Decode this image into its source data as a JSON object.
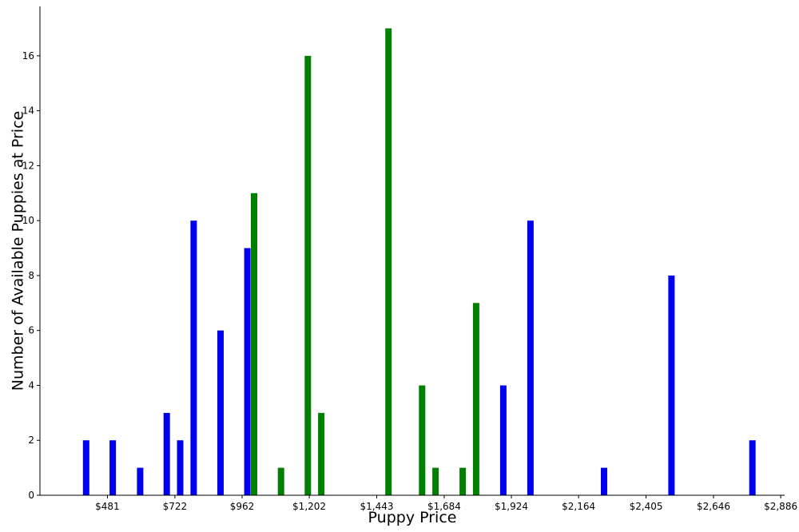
{
  "chart_data": {
    "type": "bar",
    "title": "",
    "xlabel": "Puppy Price",
    "ylabel": "Number of Available Puppies at Price",
    "xlim": [
      240,
      2900
    ],
    "ylim": [
      0,
      17.8
    ],
    "x_ticks": [
      {
        "value": 481,
        "label": "$481"
      },
      {
        "value": 722,
        "label": "$722"
      },
      {
        "value": 962,
        "label": "$962"
      },
      {
        "value": 1202,
        "label": "$1,202"
      },
      {
        "value": 1443,
        "label": "$1,443"
      },
      {
        "value": 1684,
        "label": "$1,684"
      },
      {
        "value": 1924,
        "label": "$1,924"
      },
      {
        "value": 2164,
        "label": "$2,164"
      },
      {
        "value": 2405,
        "label": "$2,405"
      },
      {
        "value": 2646,
        "label": "$2,646"
      },
      {
        "value": 2886,
        "label": "$2,886"
      }
    ],
    "y_ticks": [
      0,
      2,
      4,
      6,
      8,
      10,
      12,
      14,
      16
    ],
    "grid": false,
    "colors": {
      "blue": "#0000ee",
      "green": "#007f00"
    },
    "series": [
      {
        "color": "blue",
        "points": [
          {
            "x": 405,
            "y": 2
          },
          {
            "x": 500,
            "y": 2
          },
          {
            "x": 598,
            "y": 1
          },
          {
            "x": 693,
            "y": 3
          },
          {
            "x": 741,
            "y": 2
          },
          {
            "x": 789,
            "y": 10
          },
          {
            "x": 885,
            "y": 6
          },
          {
            "x": 981,
            "y": 9
          },
          {
            "x": 1895,
            "y": 4
          },
          {
            "x": 1992,
            "y": 10
          },
          {
            "x": 2255,
            "y": 1
          },
          {
            "x": 2496,
            "y": 8
          },
          {
            "x": 2785,
            "y": 2
          }
        ]
      },
      {
        "color": "green",
        "points": [
          {
            "x": 1005,
            "y": 11
          },
          {
            "x": 1101,
            "y": 1
          },
          {
            "x": 1197,
            "y": 16
          },
          {
            "x": 1245,
            "y": 3
          },
          {
            "x": 1485,
            "y": 17
          },
          {
            "x": 1605,
            "y": 4
          },
          {
            "x": 1653,
            "y": 1
          },
          {
            "x": 1750,
            "y": 1
          },
          {
            "x": 1798,
            "y": 7
          }
        ]
      }
    ]
  }
}
